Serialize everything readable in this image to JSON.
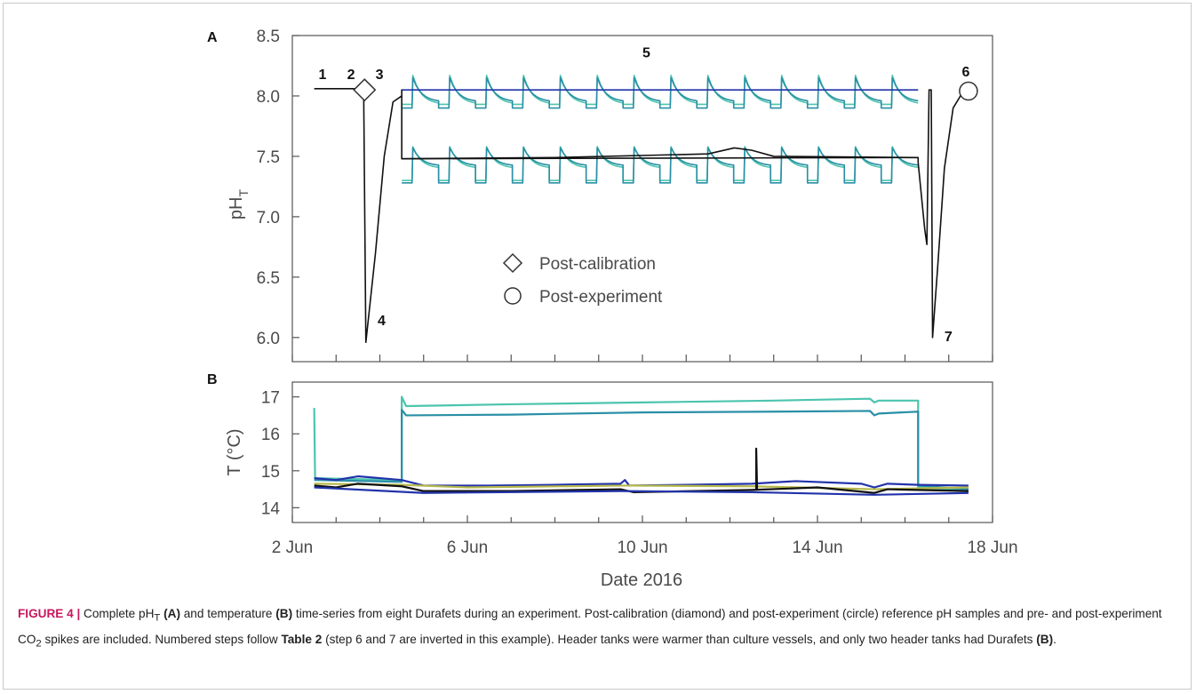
{
  "chart_data": [
    {
      "panel": "A",
      "type": "line",
      "ylabel_main": "pH",
      "ylabel_sub": "T",
      "xlim": [
        "2016-06-02",
        "2016-06-18"
      ],
      "ylim": [
        5.8,
        8.5
      ],
      "yticks": [
        6.0,
        6.5,
        7.0,
        7.5,
        8.0,
        8.5
      ],
      "ytick_labels": [
        "6.0",
        "6.5",
        "7.0",
        "7.5",
        "8.0",
        "8.5"
      ],
      "colors": {
        "teal_light": "#4cc4ae",
        "teal_dark": "#2a8fa6",
        "navy": "#2233aa",
        "black": "#111111"
      },
      "series": [
        {
          "role": "ambient vessel sawtooth (light)",
          "color_key": "teal_light",
          "start": "2016-06-04.5",
          "end": "2016-06-16.3",
          "cycles": 14,
          "peak": 8.17,
          "trough": 7.93,
          "floor": 7.93
        },
        {
          "role": "ambient vessel sawtooth (dark)",
          "color_key": "teal_dark",
          "start": "2016-06-04.5",
          "end": "2016-06-16.3",
          "cycles": 14,
          "peak": 8.15,
          "trough": 7.95,
          "floor": 7.9
        },
        {
          "role": "low pH vessel sawtooth (light)",
          "color_key": "teal_light",
          "start": "2016-06-04.5",
          "end": "2016-06-16.3",
          "cycles": 14,
          "peak": 7.58,
          "trough": 7.4,
          "floor": 7.3
        },
        {
          "role": "low pH vessel sawtooth (dark)",
          "color_key": "teal_dark",
          "start": "2016-06-04.5",
          "end": "2016-06-16.3",
          "cycles": 14,
          "peak": 7.57,
          "trough": 7.42,
          "floor": 7.28
        },
        {
          "role": "ambient header tank",
          "color_key": "navy",
          "points": [
            [
              4.5,
              8.05
            ],
            [
              16.3,
              8.05
            ]
          ]
        },
        {
          "role": "low pH header tank",
          "color_key": "black",
          "points": [
            [
              4.5,
              7.48
            ],
            [
              8.0,
              7.49
            ],
            [
              11.5,
              7.52
            ],
            [
              12.1,
              7.57
            ],
            [
              12.5,
              7.55
            ],
            [
              13.0,
              7.5
            ],
            [
              16.3,
              7.49
            ]
          ]
        },
        {
          "role": "calibration and spike trace",
          "color_key": "black",
          "points": [
            [
              2.5,
              8.06
            ],
            [
              3.5,
              8.06
            ],
            [
              3.63,
              8.05
            ],
            [
              3.68,
              5.96
            ],
            [
              3.9,
              6.7
            ],
            [
              4.1,
              7.5
            ],
            [
              4.3,
              7.95
            ],
            [
              4.5,
              8.0
            ],
            [
              4.5,
              8.05
            ],
            [
              4.5,
              7.48
            ],
            [
              16.3,
              7.49
            ],
            [
              16.3,
              7.45
            ],
            [
              16.45,
              6.9
            ],
            [
              16.5,
              6.77
            ],
            [
              16.55,
              8.05
            ],
            [
              16.55,
              8.05
            ],
            [
              16.6,
              8.05
            ],
            [
              16.63,
              6.0
            ],
            [
              16.75,
              6.6
            ],
            [
              16.9,
              7.4
            ],
            [
              17.1,
              7.9
            ],
            [
              17.3,
              8.02
            ],
            [
              17.45,
              8.04
            ]
          ]
        }
      ],
      "markers": [
        {
          "shape": "diamond",
          "x": 3.65,
          "y": 8.05
        },
        {
          "shape": "circle",
          "x": 17.45,
          "y": 8.04
        }
      ],
      "legend": [
        {
          "shape": "diamond",
          "label": "Post-calibration"
        },
        {
          "shape": "circle",
          "label": "Post-experiment"
        }
      ],
      "annotations": [
        {
          "text": "1",
          "x": 2.6,
          "y": 8.14
        },
        {
          "text": "2",
          "x": 3.25,
          "y": 8.14
        },
        {
          "text": "3",
          "x": 3.9,
          "y": 8.14
        },
        {
          "text": "4",
          "x": 3.95,
          "y": 6.1
        },
        {
          "text": "5",
          "x": 10.0,
          "y": 8.32
        },
        {
          "text": "6",
          "x": 17.3,
          "y": 8.16
        },
        {
          "text": "7",
          "x": 16.9,
          "y": 5.97
        }
      ]
    },
    {
      "panel": "B",
      "type": "line",
      "ylabel": "T (°C)",
      "xlabel": "Date 2016",
      "xlim": [
        "2016-06-02",
        "2016-06-18"
      ],
      "ylim": [
        13.6,
        17.4
      ],
      "yticks": [
        14,
        15,
        16,
        17
      ],
      "ytick_labels": [
        "14",
        "15",
        "16",
        "17"
      ],
      "xticks": [
        "2016-06-02",
        "2016-06-06",
        "2016-06-10",
        "2016-06-14",
        "2016-06-18"
      ],
      "xtick_labels": [
        "2 Jun",
        "6 Jun",
        "10 Jun",
        "14 Jun",
        "18 Jun"
      ],
      "series": [
        {
          "role": "header tank (light)",
          "color_key": "teal_light",
          "points": [
            [
              2.5,
              16.7
            ],
            [
              2.52,
              14.8
            ],
            [
              4.5,
              14.75
            ],
            [
              4.5,
              17.0
            ],
            [
              4.6,
              16.75
            ],
            [
              7.0,
              16.8
            ],
            [
              10.0,
              16.85
            ],
            [
              13.0,
              16.9
            ],
            [
              15.2,
              16.95
            ],
            [
              15.3,
              16.85
            ],
            [
              15.4,
              16.9
            ],
            [
              16.3,
              16.9
            ],
            [
              16.3,
              14.55
            ],
            [
              17.45,
              14.45
            ]
          ]
        },
        {
          "role": "header tank (dark)",
          "color_key": "teal_dark",
          "points": [
            [
              2.5,
              14.75
            ],
            [
              4.5,
              14.7
            ],
            [
              4.5,
              16.65
            ],
            [
              4.6,
              16.5
            ],
            [
              7.0,
              16.52
            ],
            [
              10.0,
              16.58
            ],
            [
              13.0,
              16.6
            ],
            [
              15.2,
              16.62
            ],
            [
              15.3,
              16.5
            ],
            [
              15.4,
              16.55
            ],
            [
              16.3,
              16.6
            ],
            [
              16.3,
              14.6
            ],
            [
              17.45,
              14.5
            ]
          ]
        },
        {
          "role": "culture vessels (navy)",
          "color_key": "navy",
          "points": [
            [
              2.5,
              14.8
            ],
            [
              3.0,
              14.75
            ],
            [
              3.5,
              14.85
            ],
            [
              4.5,
              14.75
            ],
            [
              5.0,
              14.6
            ],
            [
              6.5,
              14.6
            ],
            [
              8.0,
              14.62
            ],
            [
              9.5,
              14.65
            ],
            [
              9.6,
              14.75
            ],
            [
              9.7,
              14.6
            ],
            [
              11.0,
              14.62
            ],
            [
              12.5,
              14.65
            ],
            [
              13.5,
              14.72
            ],
            [
              15.0,
              14.65
            ],
            [
              15.3,
              14.55
            ],
            [
              15.6,
              14.65
            ],
            [
              16.3,
              14.62
            ],
            [
              17.45,
              14.6
            ]
          ]
        },
        {
          "role": "culture vessels (yellow-green)",
          "color_key": "olive",
          "points": [
            [
              2.5,
              14.65
            ],
            [
              4.5,
              14.62
            ],
            [
              6.0,
              14.55
            ],
            [
              9.6,
              14.6
            ],
            [
              12.5,
              14.58
            ],
            [
              15.3,
              14.5
            ],
            [
              17.45,
              14.55
            ]
          ]
        },
        {
          "role": "culture vessels (black)",
          "color_key": "black",
          "points": [
            [
              2.5,
              14.6
            ],
            [
              3.0,
              14.55
            ],
            [
              3.5,
              14.65
            ],
            [
              4.5,
              14.58
            ],
            [
              5.0,
              14.45
            ],
            [
              7.0,
              14.45
            ],
            [
              9.5,
              14.5
            ],
            [
              9.8,
              14.42
            ],
            [
              12.5,
              14.48
            ],
            [
              14.0,
              14.55
            ],
            [
              15.3,
              14.4
            ],
            [
              15.6,
              14.5
            ],
            [
              17.45,
              14.45
            ]
          ]
        },
        {
          "role": "culture vessels (dark navy)",
          "color_key": "navy",
          "points": [
            [
              2.5,
              14.55
            ],
            [
              5.0,
              14.4
            ],
            [
              9.5,
              14.45
            ],
            [
              12.5,
              14.42
            ],
            [
              15.3,
              14.35
            ],
            [
              17.45,
              14.4
            ]
          ]
        },
        {
          "role": "spike",
          "color_key": "black",
          "points": [
            [
              12.6,
              14.5
            ],
            [
              12.6,
              15.6
            ],
            [
              12.62,
              14.5
            ]
          ]
        }
      ]
    }
  ],
  "panel_labels": {
    "a": "A",
    "b": "B"
  },
  "axis": {
    "ylabel_a_main": "pH",
    "ylabel_a_sub": "T",
    "ylabel_b": "T (°C)",
    "xlabel": "Date 2016"
  },
  "legend": {
    "post_calibration": "Post-calibration",
    "post_experiment": "Post-experiment"
  },
  "caption": {
    "figure_label": "FIGURE 4 |",
    "text_1": " Complete pH",
    "sub_t": "T",
    "bold_a": "(A)",
    "text_2": " and temperature ",
    "bold_b": "(B)",
    "text_3": " time-series from eight Durafets during an experiment. Post-calibration (diamond) and post-experiment (circle) reference pH samples and pre- and post-experiment CO",
    "sub_2": "2",
    "text_4": " spikes are included. Numbered steps follow ",
    "bold_table": "Table 2",
    "text_5": " (step 6 and 7 are inverted in this example). Header tanks were warmer than culture vessels, and only two header tanks had Durafets ",
    "bold_b2": "(B)",
    "text_6": "."
  },
  "colors": {
    "teal_light": "#4cc4ae",
    "teal_dark": "#2a8fa6",
    "navy": "#2233aa",
    "olive": "#b5b84a",
    "black": "#111111",
    "axis": "#555555",
    "caption_label": "#c8175e"
  }
}
